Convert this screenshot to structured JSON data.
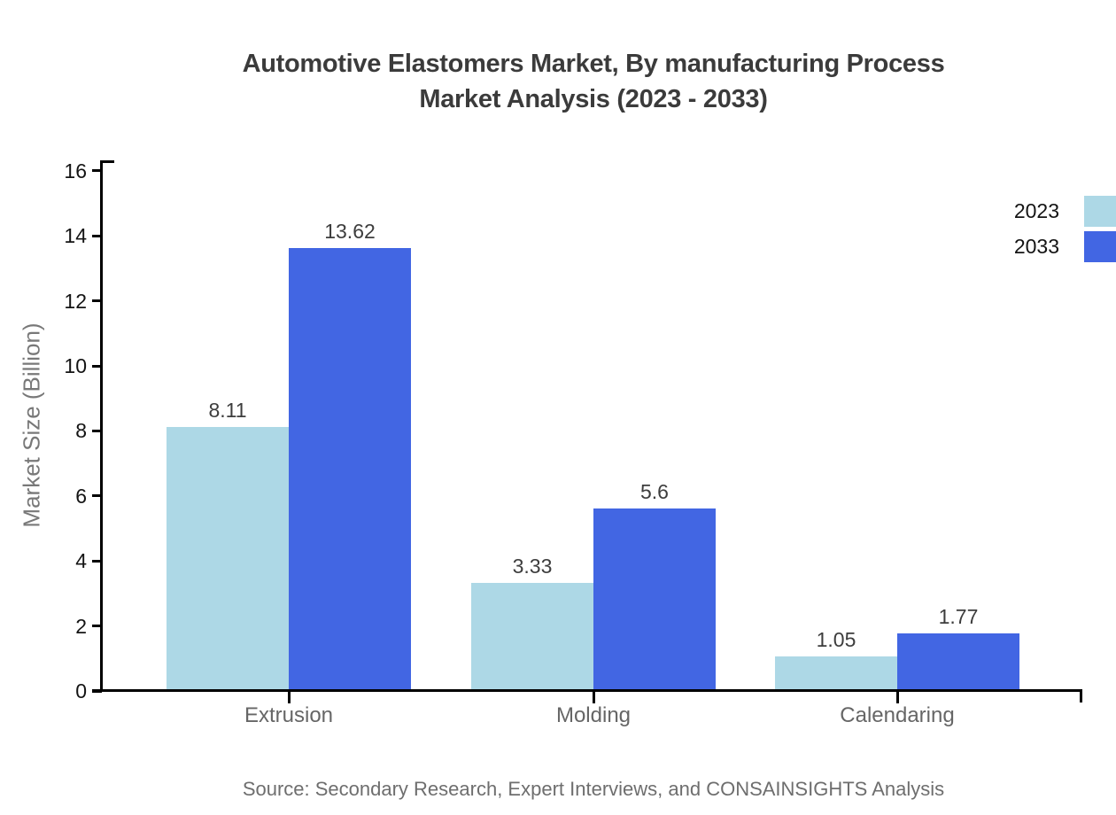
{
  "title": {
    "line1": "Automotive Elastomers Market, By manufacturing Process",
    "line2": "Market Analysis (2023 - 2033)"
  },
  "chart_data": {
    "type": "bar",
    "categories": [
      "Extrusion",
      "Molding",
      "Calendaring"
    ],
    "series": [
      {
        "name": "2023",
        "color": "#ADD8E6",
        "values": [
          8.11,
          3.33,
          1.05
        ]
      },
      {
        "name": "2033",
        "color": "#4266E3",
        "values": [
          13.62,
          5.6,
          1.77
        ]
      }
    ],
    "value_labels": [
      [
        "8.11",
        "3.33",
        "1.05"
      ],
      [
        "13.62",
        "5.6",
        "1.77"
      ]
    ],
    "xlabel": "",
    "ylabel": "Market Size (Billion)",
    "ylim": [
      0,
      16
    ],
    "ytick_step": 2,
    "yticks": [
      "0",
      "2",
      "4",
      "6",
      "8",
      "10",
      "12",
      "14",
      "16"
    ],
    "grid": false,
    "legend_position": "top-right",
    "legend_entries": [
      "2023",
      "2033"
    ]
  },
  "colors": {
    "title": "#3b3b3b",
    "axis": "#000000",
    "tick_label": "#141414",
    "category_label": "#666666",
    "value_label": "#3d3d3d",
    "y_axis_title": "#787878",
    "source_text": "#6e6e6e",
    "series_2023": "#ADD8E6",
    "series_2033": "#4266E3"
  },
  "source": "Source: Secondary Research, Expert Interviews, and CONSAINSIGHTS Analysis"
}
